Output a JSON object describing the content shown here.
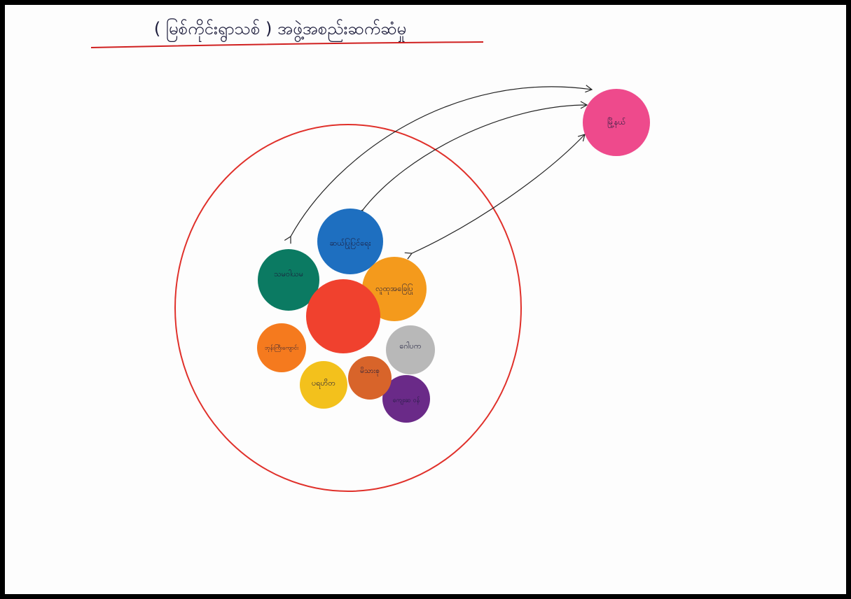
{
  "title": "( မြစ်ကိုင်းရွာသစ် ) အဖွဲ့အစည်းဆက်ဆံမှု",
  "nodes": [
    {
      "label": "မြို့နယ်"
    },
    {
      "label": "သမဝါယမ"
    },
    {
      "label": "ဆယ်ပြုပြင်ရေး"
    },
    {
      "label": "လူထုအခြေပြု"
    },
    {
      "label": "ဘုန်းကြီးကျောင်း"
    },
    {
      "label": "ပရဟိတ"
    },
    {
      "label": "မိသားစု"
    },
    {
      "label": "ဂေါပက"
    },
    {
      "label": "ကျေးဆ ဝန်"
    }
  ]
}
